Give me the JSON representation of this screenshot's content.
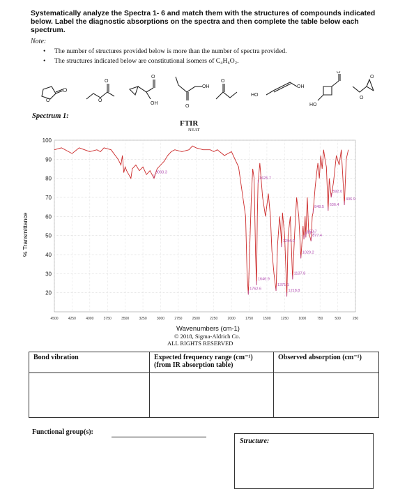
{
  "instructions": "Systematically analyze the Spectra 1- 6 and match them with the structures of compounds indicated below. Label the diagnostic absorptions on the spectra and then complete the table below each spectrum.",
  "note_label": "Note:",
  "bullets": [
    "The number of structures provided below is more than the number of spectra provided.",
    "The structures indicated below are constitutional isomers of C₄H₆O₂."
  ],
  "structure_labels": [
    "OH",
    "OH",
    "HO",
    "OH",
    "HO"
  ],
  "spectrum_title": "Spectrum 1:",
  "chart_title": "FTIR",
  "chart_subtitle": "NEAT",
  "chart_data": {
    "type": "line",
    "xlabel": "Wavenumbers (cm-1)",
    "ylabel": "% Transmittance",
    "xlim": [
      4500,
      250
    ],
    "ylim": [
      10,
      100
    ],
    "xticks": [
      4500,
      4250,
      4000,
      3750,
      3500,
      3250,
      3000,
      2750,
      2500,
      2250,
      2000,
      1750,
      1500,
      1250,
      1000,
      750,
      500,
      250
    ],
    "yticks": [
      20,
      30,
      40,
      50,
      60,
      70,
      80,
      90,
      100
    ],
    "grid": true,
    "series": [
      {
        "x": [
          4500,
          4400,
          4250,
          4150,
          4000,
          3900,
          3850,
          3800,
          3700,
          3600,
          3560,
          3540,
          3520,
          3500,
          3480,
          3420,
          3400,
          3350,
          3300,
          3250,
          3200,
          3150,
          3093,
          3050,
          3000,
          2950,
          2900,
          2850,
          2800,
          2700,
          2600,
          2550,
          2500,
          2400,
          2300,
          2250,
          2200,
          2100,
          2000,
          1900,
          1800,
          1780,
          1762,
          1745,
          1720,
          1700,
          1680,
          1660,
          1646,
          1635,
          1625,
          1600,
          1560,
          1520,
          1480,
          1450,
          1430,
          1400,
          1371,
          1350,
          1320,
          1300,
          1294,
          1280,
          1250,
          1218,
          1200,
          1170,
          1137,
          1110,
          1080,
          1050,
          1020,
          990,
          977,
          960,
          950,
          930,
          910,
          877,
          860,
          848,
          820,
          800,
          780,
          760,
          740,
          720,
          700,
          680,
          660,
          636,
          620,
          592,
          560,
          520,
          480,
          450,
          406,
          380,
          350
        ],
        "y": [
          95,
          96,
          93,
          96,
          94,
          95,
          94,
          96,
          95,
          90,
          87,
          92,
          83,
          86,
          84,
          80,
          85,
          87,
          84,
          86,
          82,
          84,
          80,
          85,
          87,
          89,
          92,
          94,
          95,
          94,
          95,
          97,
          96,
          95,
          95,
          94,
          95,
          92,
          94,
          86,
          60,
          30,
          19,
          40,
          70,
          85,
          80,
          40,
          24,
          60,
          77,
          88,
          70,
          60,
          72,
          60,
          42,
          30,
          21,
          45,
          60,
          50,
          44,
          62,
          50,
          18,
          50,
          60,
          27,
          50,
          70,
          60,
          38,
          55,
          48,
          60,
          49,
          70,
          52,
          47,
          60,
          62,
          75,
          82,
          88,
          80,
          92,
          85,
          95,
          90,
          86,
          63,
          80,
          70,
          78,
          92,
          87,
          95,
          66,
          90,
          95
        ]
      }
    ],
    "annotations": [
      "3093.3",
      "1625.7",
      "592.0",
      "406.9",
      "848.5",
      "636.4",
      "977.7",
      "1294.0",
      "877.4",
      "950.7",
      "1020.2",
      "1646.9",
      "1371.1",
      "1137.8",
      "1762.6",
      "1218.8"
    ],
    "color": "#cc2b2b"
  },
  "copyright_line1": "© 2018, Sigma-Aldrich Co.",
  "copyright_line2": "ALL RIGHTS RESERVED",
  "table": {
    "headers": [
      "Bond vibration",
      "Expected frequency range (cm⁻¹)",
      "Observed absorption (cm⁻¹)"
    ],
    "header_sub": "(from IR absorption table)"
  },
  "functional_group_label": "Functional group(s):",
  "structure_label": "Structure:"
}
